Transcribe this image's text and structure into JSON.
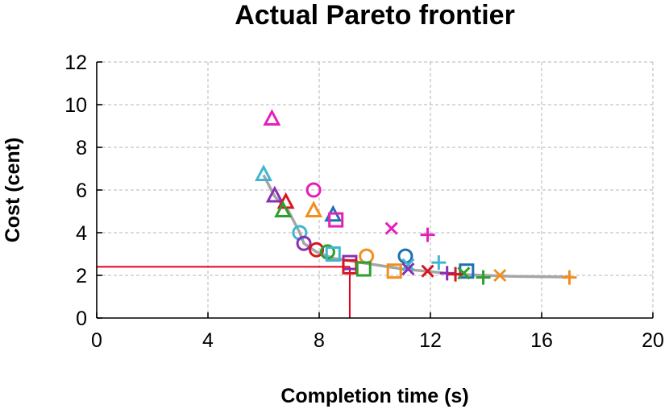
{
  "chart_data": {
    "type": "scatter",
    "title": "Actual Pareto frontier",
    "xlabel": "Completion time (s)",
    "ylabel": "Cost (cent)",
    "xlim": [
      0,
      20
    ],
    "ylim": [
      0,
      12
    ],
    "xticks": [
      0,
      4,
      8,
      12,
      16,
      20
    ],
    "yticks": [
      0,
      2,
      4,
      6,
      8,
      10,
      12
    ],
    "grid": true,
    "frontier_line": {
      "color": "#a6a6a6",
      "points": [
        [
          6.0,
          6.7
        ],
        [
          6.4,
          5.7
        ],
        [
          6.9,
          5.0
        ],
        [
          7.3,
          4.0
        ],
        [
          7.45,
          3.5
        ],
        [
          7.9,
          3.1
        ],
        [
          8.5,
          2.8
        ],
        [
          9.5,
          2.6
        ],
        [
          11.0,
          2.3
        ],
        [
          13.0,
          2.05
        ],
        [
          15.0,
          1.95
        ],
        [
          17.0,
          1.92
        ]
      ]
    },
    "reference_point": {
      "x": 9.1,
      "y": 2.4,
      "color": "#e3001b"
    },
    "points": [
      {
        "x": 6.3,
        "y": 9.3,
        "marker": "triangle",
        "color": "#e61fba"
      },
      {
        "x": 6.0,
        "y": 6.7,
        "marker": "triangle",
        "color": "#3fb6cf"
      },
      {
        "x": 6.4,
        "y": 5.7,
        "marker": "triangle",
        "color": "#8a2fb5"
      },
      {
        "x": 6.8,
        "y": 5.4,
        "marker": "triangle",
        "color": "#d8161f"
      },
      {
        "x": 6.7,
        "y": 5.0,
        "marker": "triangle",
        "color": "#2ca02c"
      },
      {
        "x": 7.8,
        "y": 5.0,
        "marker": "triangle",
        "color": "#f28e1c"
      },
      {
        "x": 8.5,
        "y": 4.8,
        "marker": "triangle",
        "color": "#1f6fb4"
      },
      {
        "x": 7.8,
        "y": 6.0,
        "marker": "circle",
        "color": "#e61fba"
      },
      {
        "x": 7.3,
        "y": 4.0,
        "marker": "circle",
        "color": "#3fb6cf"
      },
      {
        "x": 7.45,
        "y": 3.5,
        "marker": "circle",
        "color": "#8a2fb5"
      },
      {
        "x": 7.9,
        "y": 3.2,
        "marker": "circle",
        "color": "#d8161f"
      },
      {
        "x": 8.3,
        "y": 3.1,
        "marker": "circle",
        "color": "#2ca02c"
      },
      {
        "x": 9.7,
        "y": 2.9,
        "marker": "circle",
        "color": "#f28e1c"
      },
      {
        "x": 11.1,
        "y": 2.9,
        "marker": "circle",
        "color": "#1f6fb4"
      },
      {
        "x": 8.6,
        "y": 4.6,
        "marker": "square",
        "color": "#e61fba"
      },
      {
        "x": 8.5,
        "y": 3.0,
        "marker": "square",
        "color": "#3fb6cf"
      },
      {
        "x": 9.1,
        "y": 2.6,
        "marker": "square",
        "color": "#8a2fb5"
      },
      {
        "x": 9.1,
        "y": 2.4,
        "marker": "square",
        "color": "#d8161f"
      },
      {
        "x": 9.6,
        "y": 2.3,
        "marker": "square",
        "color": "#2ca02c"
      },
      {
        "x": 10.7,
        "y": 2.2,
        "marker": "square",
        "color": "#f28e1c"
      },
      {
        "x": 13.3,
        "y": 2.2,
        "marker": "square",
        "color": "#1f6fb4"
      },
      {
        "x": 10.6,
        "y": 4.2,
        "marker": "x",
        "color": "#e61fba"
      },
      {
        "x": 11.2,
        "y": 2.5,
        "marker": "x",
        "color": "#3fb6cf"
      },
      {
        "x": 11.2,
        "y": 2.3,
        "marker": "x",
        "color": "#8a2fb5"
      },
      {
        "x": 11.9,
        "y": 2.2,
        "marker": "x",
        "color": "#d8161f"
      },
      {
        "x": 13.2,
        "y": 2.1,
        "marker": "x",
        "color": "#2ca02c"
      },
      {
        "x": 14.5,
        "y": 2.0,
        "marker": "x",
        "color": "#f28e1c"
      },
      {
        "x": 11.9,
        "y": 3.9,
        "marker": "plus",
        "color": "#e61fba"
      },
      {
        "x": 12.3,
        "y": 2.6,
        "marker": "plus",
        "color": "#3fb6cf"
      },
      {
        "x": 12.6,
        "y": 2.1,
        "marker": "plus",
        "color": "#8a2fb5"
      },
      {
        "x": 12.9,
        "y": 2.05,
        "marker": "plus",
        "color": "#d8161f"
      },
      {
        "x": 13.9,
        "y": 1.9,
        "marker": "plus",
        "color": "#2ca02c"
      },
      {
        "x": 17.0,
        "y": 1.9,
        "marker": "plus",
        "color": "#f28e1c"
      }
    ]
  }
}
